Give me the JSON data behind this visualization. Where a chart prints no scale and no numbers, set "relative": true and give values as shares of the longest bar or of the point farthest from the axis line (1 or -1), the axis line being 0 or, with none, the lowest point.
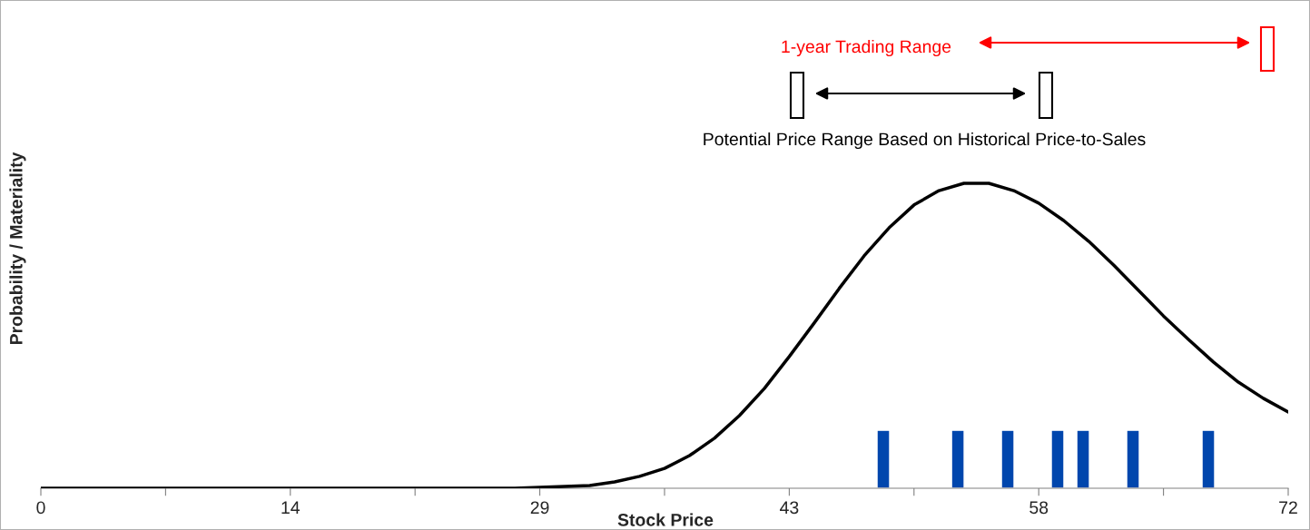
{
  "chart_data": {
    "type": "line",
    "relative": true,
    "xlabel": "Stock Price",
    "ylabel": "Probability / Materiality",
    "xlim": [
      0,
      72
    ],
    "xticks": [
      0,
      {
        "value": 7.2,
        "label": null
      },
      {
        "value": 14.4,
        "label": "14"
      },
      {
        "value": 21.6,
        "label": null
      },
      {
        "value": 28.8,
        "label": "29"
      },
      {
        "value": 36,
        "label": null
      },
      {
        "value": 43.2,
        "label": "43"
      },
      {
        "value": 50.4,
        "label": null
      },
      {
        "value": 57.6,
        "label": "58"
      },
      {
        "value": 64.8,
        "label": null
      },
      72
    ],
    "tick_labels": "x",
    "grid": false,
    "marker": "none",
    "line_style": "solid",
    "series": [
      {
        "color": "#000000",
        "x": [
          0,
          1.44,
          2.88,
          4.32,
          5.76,
          7.2,
          8.64,
          10.08,
          11.52,
          12.96,
          14.4,
          15.84,
          17.28,
          18.72,
          20.16,
          21.6,
          23.04,
          24.48,
          25.92,
          27.36,
          28.8,
          30.24,
          31.68,
          33.12,
          34.56,
          36.0,
          37.44,
          38.88,
          40.32,
          41.76,
          43.2,
          44.64,
          46.08,
          47.52,
          48.96,
          50.4,
          51.84,
          53.28,
          54.72,
          56.16,
          57.6,
          59.04,
          60.48,
          61.92,
          63.36,
          64.8,
          66.24,
          67.68,
          69.12,
          70.56,
          72
        ],
        "values": [
          0,
          0,
          0,
          0,
          0,
          0,
          0,
          0,
          0,
          0,
          0,
          0,
          0,
          0,
          0,
          0,
          0,
          0,
          0,
          0,
          0.003,
          0.006,
          0.009,
          0.021,
          0.039,
          0.065,
          0.107,
          0.164,
          0.238,
          0.327,
          0.432,
          0.542,
          0.655,
          0.762,
          0.854,
          0.929,
          0.976,
          1,
          1,
          0.976,
          0.935,
          0.878,
          0.81,
          0.732,
          0.649,
          0.565,
          0.488,
          0.414,
          0.348,
          0.295,
          0.25
        ]
      },
      {
        "type": "bar",
        "color": "#0046ad",
        "x": [
          48.63,
          52.93,
          55.81,
          58.69,
          60.16,
          63.04,
          67.39
        ],
        "values": [
          0.19,
          0.19,
          0.19,
          0.19,
          0.19,
          0.19,
          0.19
        ]
      }
    ],
    "annotations": [
      "1-year Trading Range",
      "Potential Price Range Based on Historical Price-to-Sales"
    ]
  }
}
